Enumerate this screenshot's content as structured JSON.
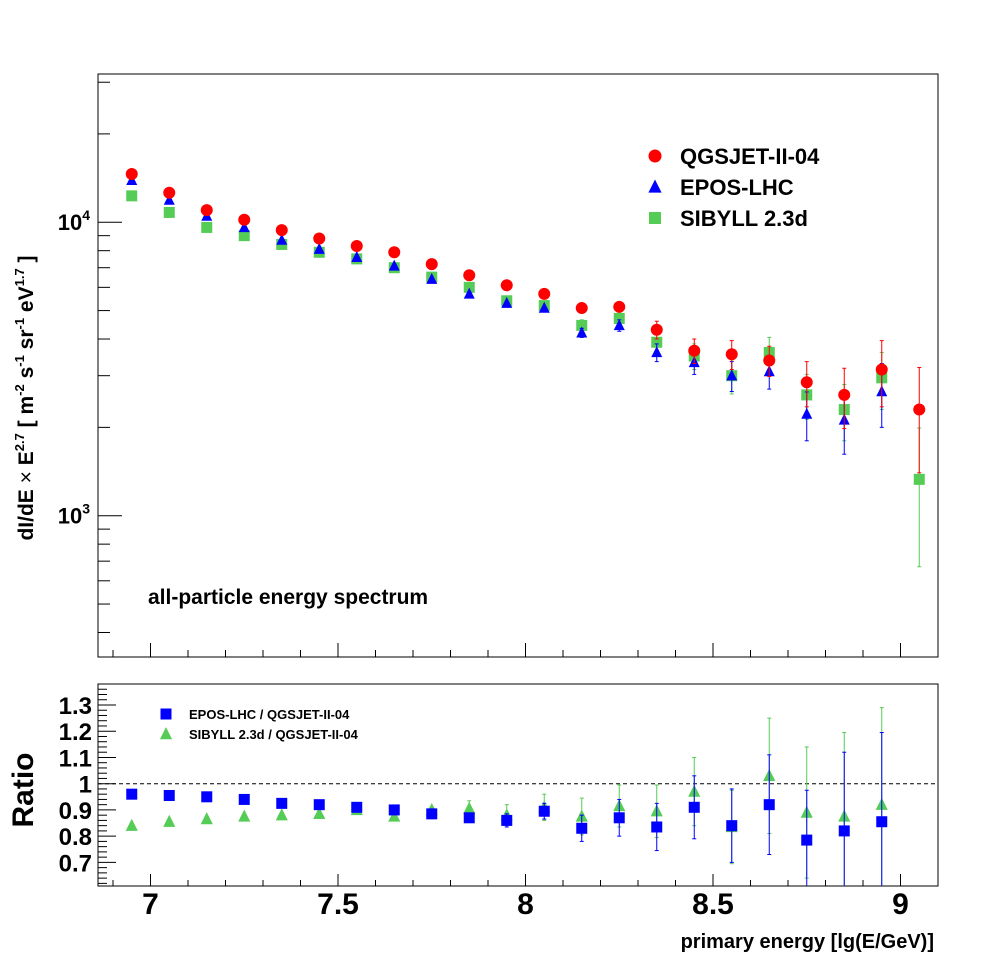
{
  "chart_data": [
    {
      "type": "scatter",
      "panel": "top",
      "yscale": "log",
      "xlim": [
        6.86,
        9.1
      ],
      "ylim": [
        330,
        32000
      ],
      "ylabel_parts": [
        "dI/dE ",
        "×",
        " E",
        "2.7",
        " [ m",
        "-2",
        " s",
        "-1",
        " sr",
        "-1",
        " eV",
        "1.7",
        " ]"
      ],
      "ylabel": "dI/dE × E2.7 [ m-2 s-1 sr-1 eV1.7 ]",
      "y_tick_labels": [
        {
          "value": 1000,
          "base": "10",
          "exp": "3"
        },
        {
          "value": 10000,
          "base": "10",
          "exp": "4"
        }
      ],
      "annotation": "all-particle energy spectrum",
      "legend_position": "top-right",
      "series": [
        {
          "name": "QGSJET-II-04",
          "color": "#ff0000",
          "marker": "circle",
          "points": [
            [
              6.95,
              14600,
              0
            ],
            [
              7.05,
              12600,
              0
            ],
            [
              7.15,
              11000,
              0
            ],
            [
              7.25,
              10200,
              0
            ],
            [
              7.35,
              9400,
              0
            ],
            [
              7.45,
              8800,
              0
            ],
            [
              7.55,
              8300,
              0
            ],
            [
              7.65,
              7900,
              0
            ],
            [
              7.75,
              7200,
              0
            ],
            [
              7.85,
              6600,
              0
            ],
            [
              7.95,
              6100,
              0
            ],
            [
              8.05,
              5700,
              0
            ],
            [
              8.15,
              5100,
              0
            ],
            [
              8.25,
              5150,
              150
            ],
            [
              8.35,
              4300,
              300
            ],
            [
              8.45,
              3650,
              350
            ],
            [
              8.55,
              3550,
              400
            ],
            [
              8.65,
              3380,
              400
            ],
            [
              8.75,
              2850,
              500
            ],
            [
              8.85,
              2580,
              600
            ],
            [
              8.95,
              3150,
              800
            ],
            [
              9.05,
              2300,
              900
            ]
          ]
        },
        {
          "name": "EPOS-LHC",
          "color": "#0000ff",
          "marker": "triangle",
          "points": [
            [
              6.95,
              13900,
              0
            ],
            [
              7.05,
              11900,
              0
            ],
            [
              7.15,
              10500,
              0
            ],
            [
              7.25,
              9600,
              0
            ],
            [
              7.35,
              8700,
              0
            ],
            [
              7.45,
              8100,
              0
            ],
            [
              7.55,
              7600,
              0
            ],
            [
              7.65,
              7100,
              0
            ],
            [
              7.75,
              6400,
              0
            ],
            [
              7.85,
              5700,
              0
            ],
            [
              7.95,
              5300,
              0
            ],
            [
              8.05,
              5100,
              0
            ],
            [
              8.15,
              4200,
              150
            ],
            [
              8.25,
              4450,
              200
            ],
            [
              8.35,
              3600,
              250
            ],
            [
              8.45,
              3330,
              300
            ],
            [
              8.55,
              3000,
              350
            ],
            [
              8.65,
              3100,
              400
            ],
            [
              8.75,
              2220,
              420
            ],
            [
              8.85,
              2120,
              500
            ],
            [
              8.95,
              2650,
              650
            ]
          ]
        },
        {
          "name": "SIBYLL 2.3d",
          "color": "#55cc55",
          "marker": "square",
          "points": [
            [
              6.95,
              12300,
              0
            ],
            [
              7.05,
              10800,
              0
            ],
            [
              7.15,
              9600,
              0
            ],
            [
              7.25,
              9000,
              0
            ],
            [
              7.35,
              8400,
              0
            ],
            [
              7.45,
              7900,
              0
            ],
            [
              7.55,
              7500,
              0
            ],
            [
              7.65,
              7000,
              0
            ],
            [
              7.75,
              6500,
              0
            ],
            [
              7.85,
              6000,
              0
            ],
            [
              7.95,
              5400,
              0
            ],
            [
              8.05,
              5200,
              0
            ],
            [
              8.15,
              4450,
              200
            ],
            [
              8.25,
              4700,
              200
            ],
            [
              8.35,
              3900,
              300
            ],
            [
              8.45,
              3500,
              350
            ],
            [
              8.55,
              3000,
              400
            ],
            [
              8.65,
              3600,
              450
            ],
            [
              8.75,
              2580,
              450
            ],
            [
              8.85,
              2300,
              500
            ],
            [
              8.95,
              2950,
              650
            ],
            [
              9.05,
              1330,
              660
            ]
          ]
        }
      ]
    },
    {
      "type": "scatter",
      "panel": "bottom",
      "yscale": "linear",
      "xlim": [
        6.86,
        9.1
      ],
      "ylim": [
        0.61,
        1.38
      ],
      "reference_line": 1,
      "ylabel": "Ratio",
      "xlabel": "primary energy [lg(E/GeV)]",
      "x_ticks": [
        7,
        7.5,
        8,
        8.5,
        9
      ],
      "x_tick_labels": [
        "7",
        "7.5",
        "8",
        "8.5",
        "9"
      ],
      "y_ticks": [
        0.7,
        0.8,
        0.9,
        1,
        1.1,
        1.2,
        1.3
      ],
      "y_tick_labels": [
        "0.7",
        "0.8",
        "0.9",
        "1",
        "1.1",
        "1.2",
        "1.3"
      ],
      "legend_position": "top-left",
      "series": [
        {
          "name": "EPOS-LHC / QGSJET-II-04",
          "color": "#0000ff",
          "marker": "square",
          "points": [
            [
              6.95,
              0.96,
              0
            ],
            [
              7.05,
              0.955,
              0
            ],
            [
              7.15,
              0.95,
              0
            ],
            [
              7.25,
              0.94,
              0
            ],
            [
              7.35,
              0.925,
              0
            ],
            [
              7.45,
              0.92,
              0
            ],
            [
              7.55,
              0.91,
              0
            ],
            [
              7.65,
              0.9,
              0
            ],
            [
              7.75,
              0.885,
              0.01
            ],
            [
              7.85,
              0.87,
              0.015
            ],
            [
              7.95,
              0.86,
              0.025
            ],
            [
              8.05,
              0.895,
              0.03
            ],
            [
              8.15,
              0.83,
              0.05
            ],
            [
              8.25,
              0.87,
              0.07
            ],
            [
              8.35,
              0.835,
              0.09
            ],
            [
              8.45,
              0.91,
              0.12
            ],
            [
              8.55,
              0.84,
              0.14
            ],
            [
              8.65,
              0.92,
              0.19
            ],
            [
              8.75,
              0.785,
              0.19
            ],
            [
              8.85,
              0.82,
              0.3
            ],
            [
              8.95,
              0.855,
              0.34
            ]
          ]
        },
        {
          "name": "SIBYLL 2.3d / QGSJET-II-04",
          "color": "#55cc55",
          "marker": "triangle",
          "points": [
            [
              6.95,
              0.84,
              0
            ],
            [
              7.05,
              0.855,
              0
            ],
            [
              7.15,
              0.865,
              0
            ],
            [
              7.25,
              0.875,
              0
            ],
            [
              7.35,
              0.88,
              0
            ],
            [
              7.45,
              0.885,
              0
            ],
            [
              7.55,
              0.9,
              0
            ],
            [
              7.65,
              0.875,
              0
            ],
            [
              7.75,
              0.9,
              0.01
            ],
            [
              7.85,
              0.905,
              0.03
            ],
            [
              7.95,
              0.88,
              0.04
            ],
            [
              8.05,
              0.91,
              0.05
            ],
            [
              8.15,
              0.875,
              0.07
            ],
            [
              8.25,
              0.915,
              0.08
            ],
            [
              8.35,
              0.895,
              0.1
            ],
            [
              8.45,
              0.97,
              0.13
            ],
            [
              8.55,
              0.835,
              0.14
            ],
            [
              8.65,
              1.03,
              0.22
            ],
            [
              8.75,
              0.89,
              0.25
            ],
            [
              8.85,
              0.875,
              0.32
            ],
            [
              8.95,
              0.92,
              0.37
            ]
          ]
        }
      ]
    }
  ]
}
